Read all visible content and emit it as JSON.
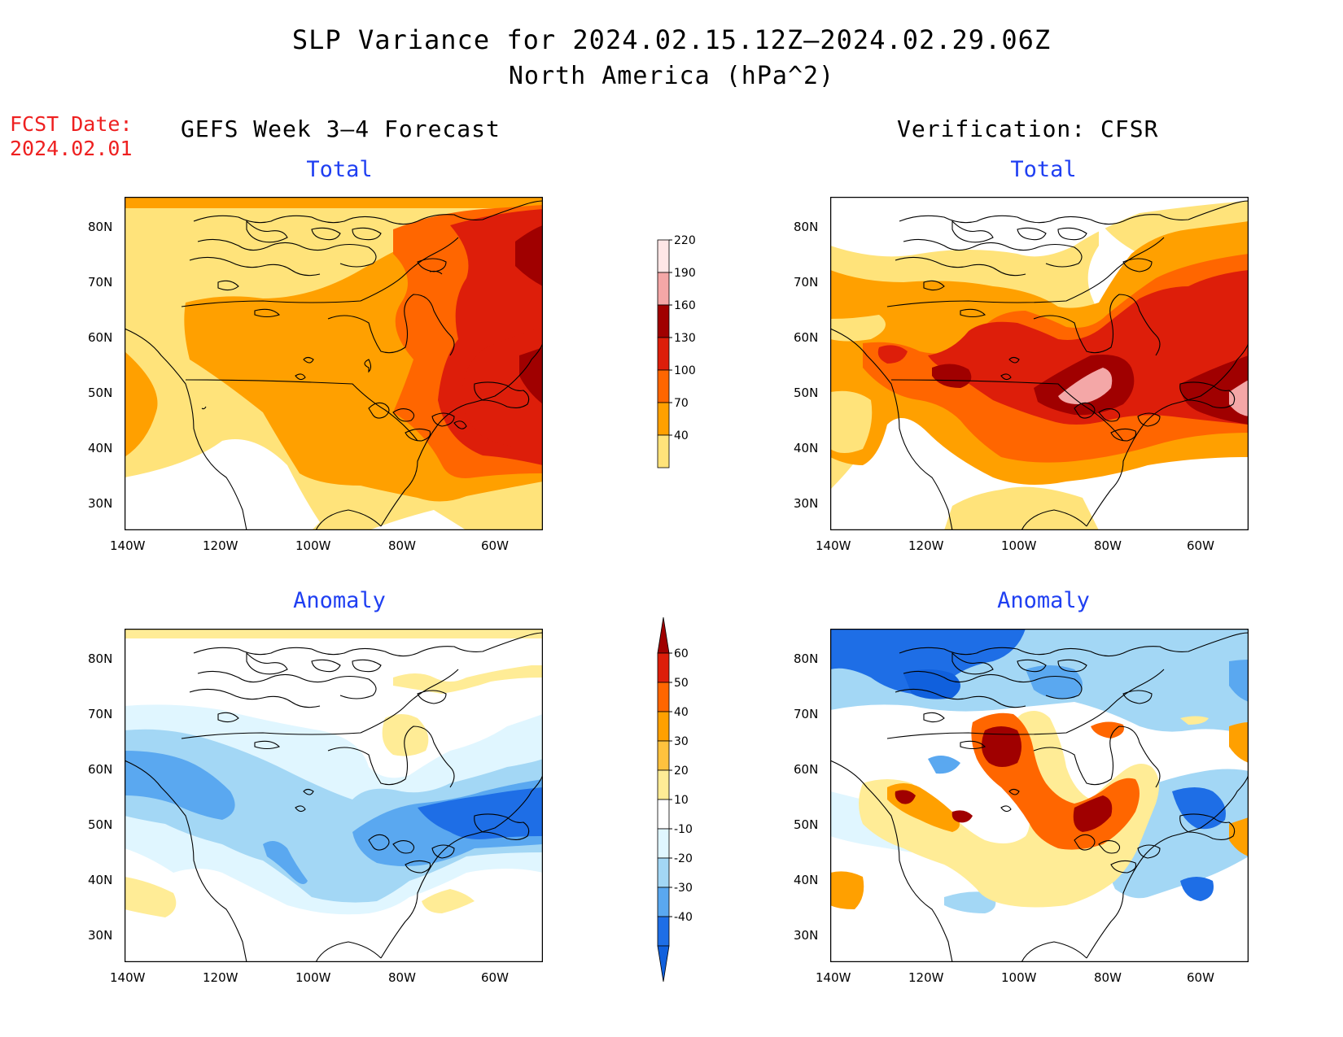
{
  "header": {
    "title": "SLP Variance for 2024.02.15.12Z–2024.02.29.06Z",
    "subtitle": "North America (hPa^2)",
    "fcst_label_line1": "FCST Date:",
    "fcst_label_line2": "2024.02.01",
    "left_column": "GEFS Week 3–4 Forecast",
    "right_column": "Verification: CFSR"
  },
  "panels": {
    "total_title": "Total",
    "anomaly_title": "Anomaly"
  },
  "axes": {
    "lat_labels": [
      "80N",
      "70N",
      "60N",
      "50N",
      "40N",
      "30N"
    ],
    "lon_labels": [
      "140W",
      "120W",
      "100W",
      "80W",
      "60W"
    ]
  },
  "colorbar_total": {
    "levels": [
      "220",
      "190",
      "160",
      "130",
      "100",
      "70",
      "40"
    ],
    "colors": [
      "#ffe6e6",
      "#f4a7a7",
      "#a00000",
      "#dd1e0a",
      "#ff6600",
      "#ffa000",
      "#ffe37a"
    ]
  },
  "colorbar_anomaly": {
    "levels": [
      "60",
      "50",
      "40",
      "30",
      "20",
      "10",
      "-10",
      "-20",
      "-30",
      "-40"
    ],
    "colors": [
      "#a00000",
      "#dd1e0a",
      "#ff6600",
      "#ffa000",
      "#ffc23e",
      "#ffec96",
      "#ffffff",
      "#e0f6ff",
      "#a3d7f5",
      "#5aa8f0",
      "#1e6ee6",
      "#1060dd"
    ]
  }
}
